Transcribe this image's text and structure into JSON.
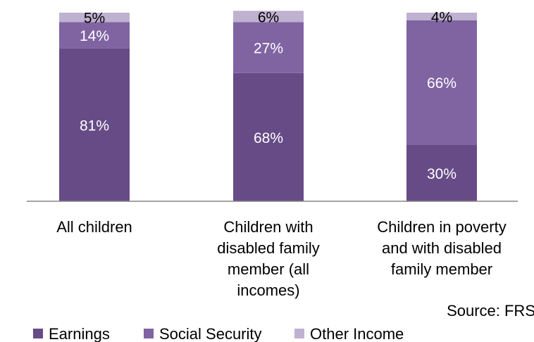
{
  "chart_data": {
    "type": "bar",
    "stacked": true,
    "percent_stacked": true,
    "categories": [
      [
        "All children"
      ],
      [
        "Children with",
        "disabled family",
        "member (all",
        "incomes)"
      ],
      [
        "Children in poverty",
        "and with disabled",
        "family member"
      ]
    ],
    "series": [
      {
        "name": "Earnings",
        "color": "#674b86",
        "values": [
          81,
          68,
          30
        ]
      },
      {
        "name": "Social Security",
        "color": "#8064a2",
        "values": [
          14,
          27,
          66
        ]
      },
      {
        "name": "Other Income",
        "color": "#bfb1d0",
        "values": [
          5,
          6,
          4
        ]
      }
    ],
    "data_labels": [
      [
        "81%",
        "14%",
        "5%"
      ],
      [
        "68%",
        "27%",
        "6%"
      ],
      [
        "30%",
        "66%",
        "4%"
      ]
    ],
    "ylim": [
      0,
      100
    ],
    "grid": false,
    "legend_position": "bottom-left",
    "source": "Source: FRS"
  }
}
